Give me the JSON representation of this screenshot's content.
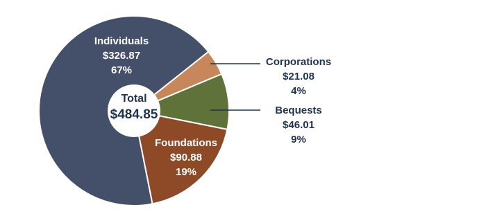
{
  "chart_data": {
    "type": "donut",
    "categories": [
      "Individuals",
      "Corporations",
      "Bequests",
      "Foundations"
    ],
    "values": [
      326.87,
      21.08,
      46.01,
      90.88
    ],
    "value_labels": [
      "$326.87",
      "$21.08",
      "$46.01",
      "$90.88"
    ],
    "percent_labels": [
      "67%",
      "4%",
      "9%",
      "19%"
    ],
    "colors": [
      "#445069",
      "#c8875a",
      "#5e7239",
      "#8e4a26"
    ],
    "center_title": "Total",
    "center_value": "$484.85"
  }
}
